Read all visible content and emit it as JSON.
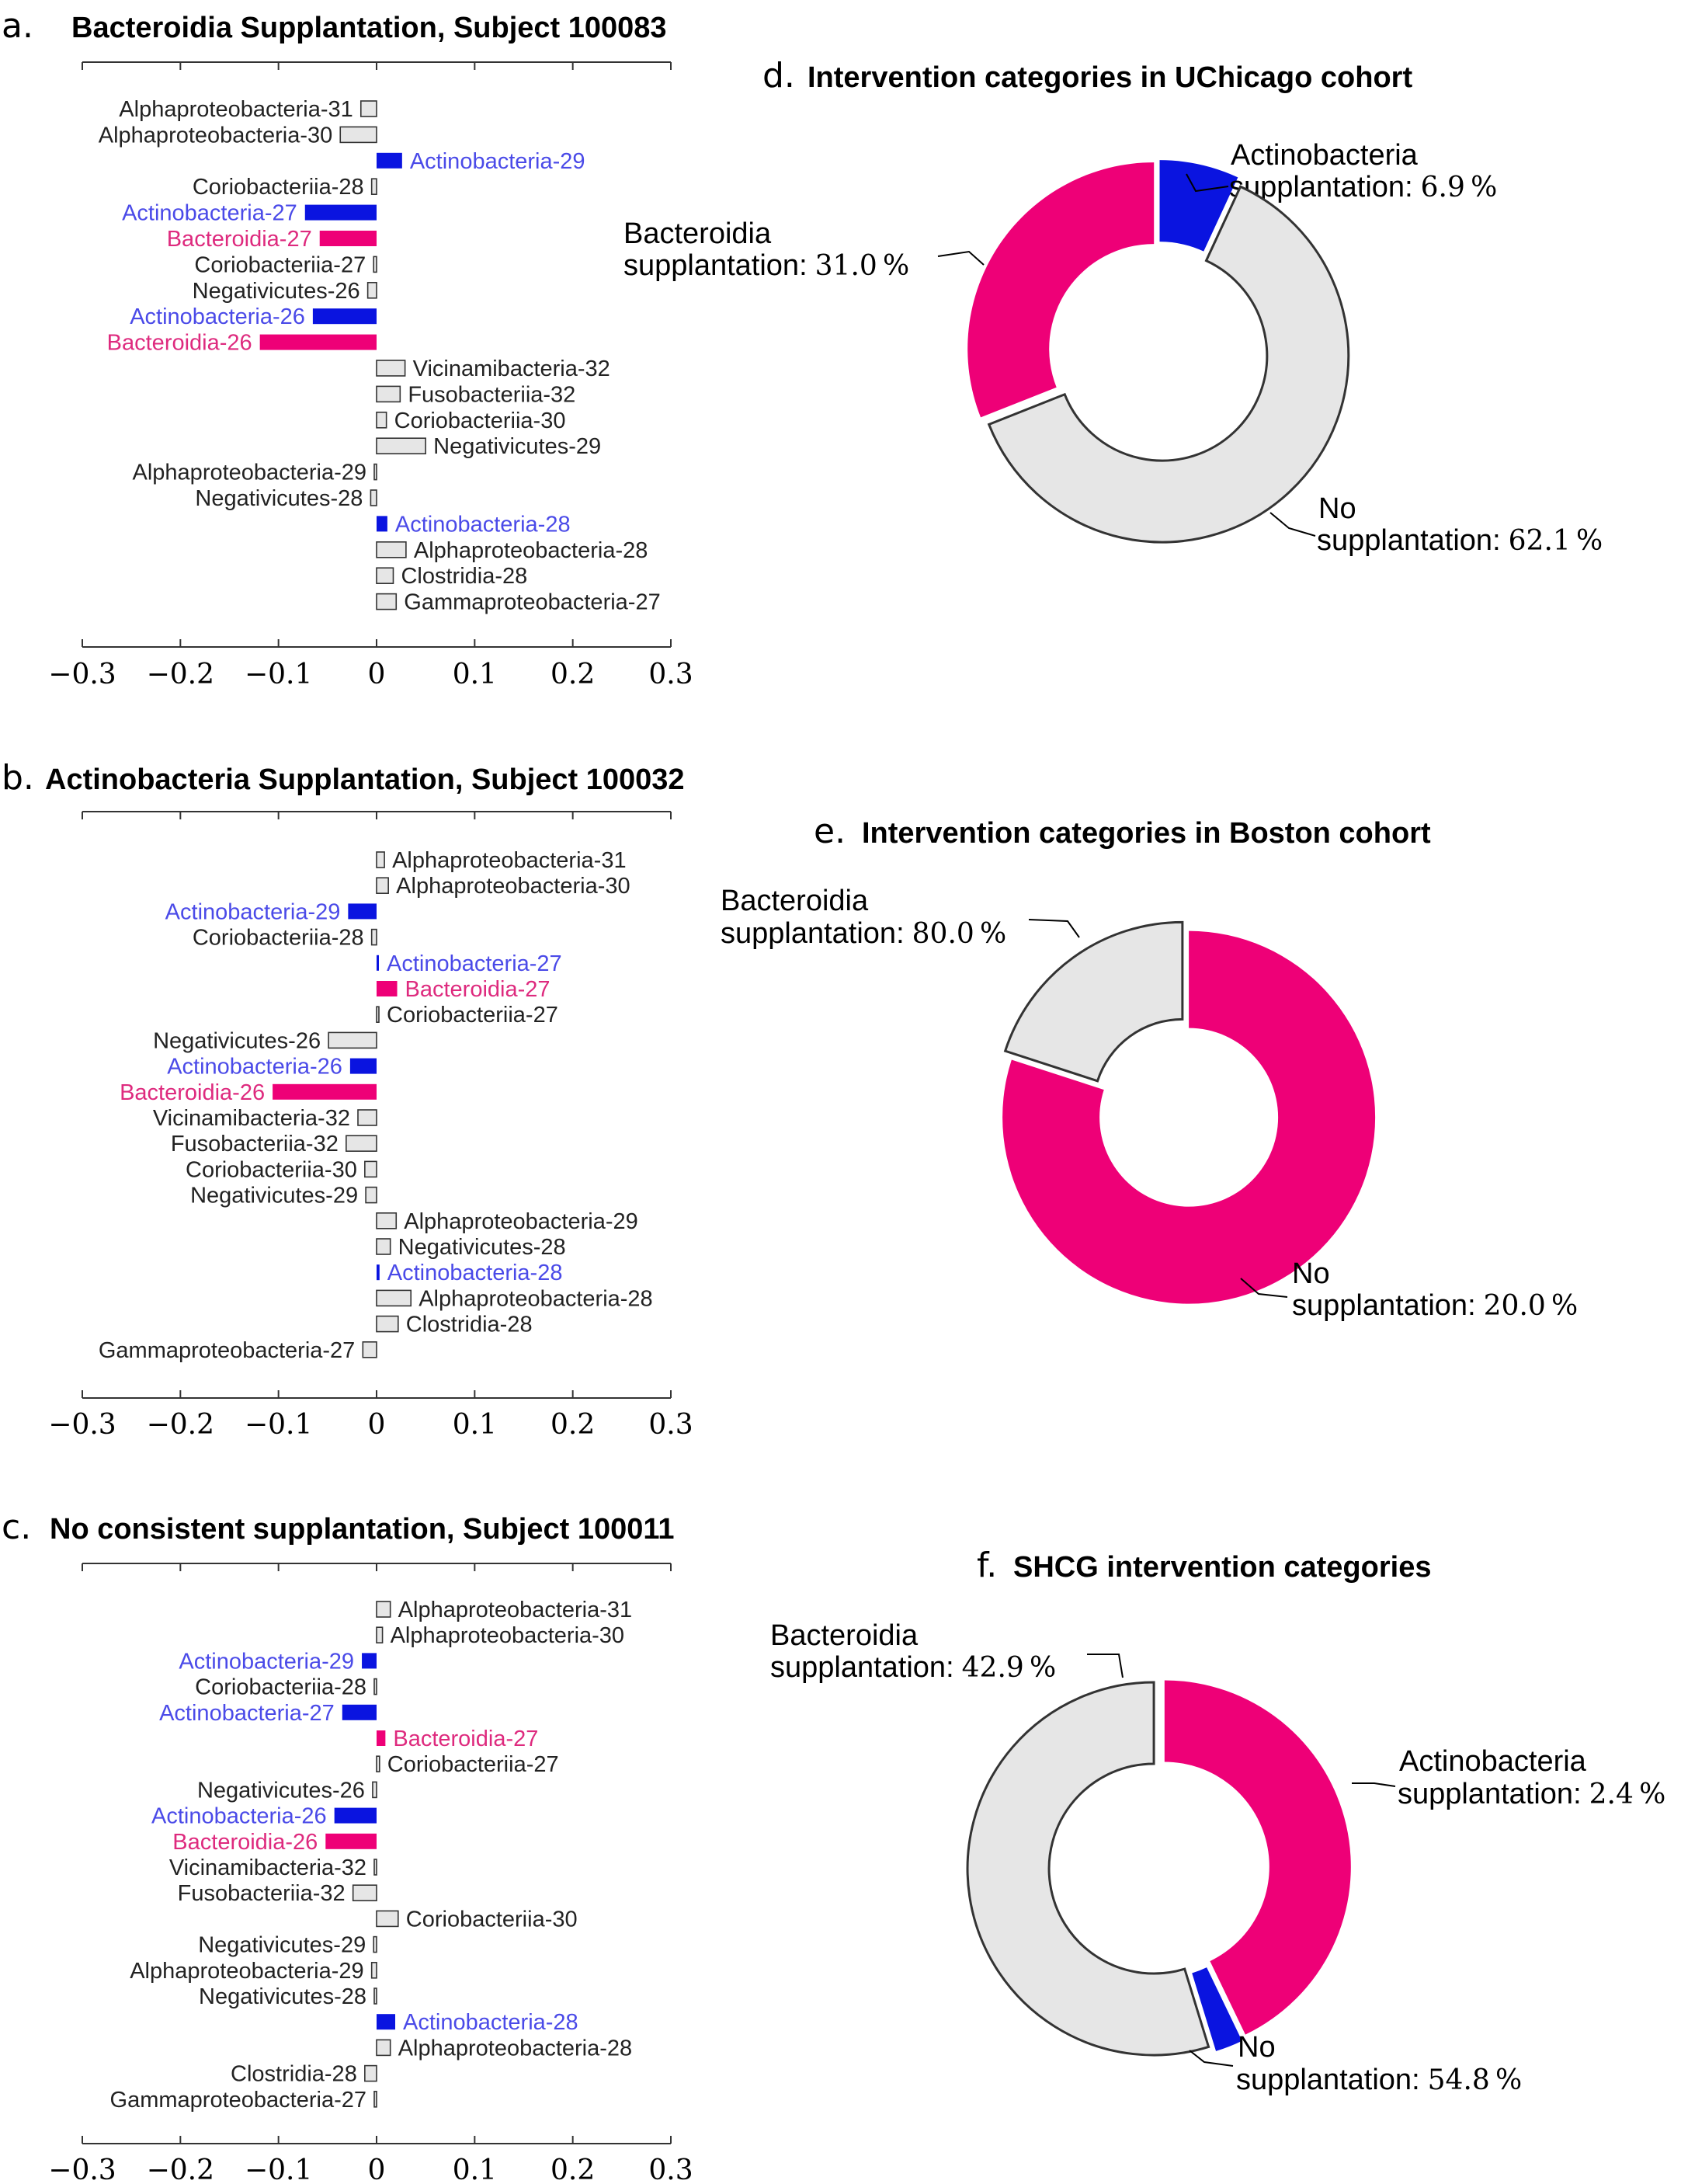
{
  "colors": {
    "bacteroidia": "#ee0077",
    "bacteroidia_text": "#de2a7e",
    "actinobacteria": "#0a14e0",
    "actinobacteria_text": "#4a4ae8",
    "other": "#e6e6e6",
    "other_text": "#222222",
    "stroke": "#333333"
  },
  "chart_data": [
    {
      "id": "a",
      "type": "bar",
      "orientation": "horizontal",
      "letter": "a.",
      "title": "Bacteroidia Supplantation, Subject 100083",
      "xlim": [
        -0.3,
        0.3
      ],
      "xticks": [
        -0.3,
        -0.2,
        -0.1,
        0,
        0.1,
        0.2,
        0.3
      ],
      "xtick_labels": [
        "−0.3",
        "−0.2",
        "−0.1",
        "0",
        "0.1",
        "0.2",
        "0.3"
      ],
      "bars": [
        {
          "label": "Alphaproteobacteria-31",
          "value": -0.016,
          "group": "other"
        },
        {
          "label": "Alphaproteobacteria-30",
          "value": -0.037,
          "group": "other"
        },
        {
          "label": "Actinobacteria-29",
          "value": 0.026,
          "group": "actinobacteria"
        },
        {
          "label": "Coriobacteriia-28",
          "value": -0.005,
          "group": "other"
        },
        {
          "label": "Actinobacteria-27",
          "value": -0.073,
          "group": "actinobacteria"
        },
        {
          "label": "Bacteroidia-27",
          "value": -0.058,
          "group": "bacteroidia"
        },
        {
          "label": "Coriobacteriia-27",
          "value": -0.003,
          "group": "other"
        },
        {
          "label": "Negativicutes-26",
          "value": -0.009,
          "group": "other"
        },
        {
          "label": "Actinobacteria-26",
          "value": -0.065,
          "group": "actinobacteria"
        },
        {
          "label": "Bacteroidia-26",
          "value": -0.119,
          "group": "bacteroidia"
        },
        {
          "label": "Vicinamibacteria-32",
          "value": 0.029,
          "group": "other"
        },
        {
          "label": "Fusobacteriia-32",
          "value": 0.024,
          "group": "other"
        },
        {
          "label": "Coriobacteriia-30",
          "value": 0.01,
          "group": "other"
        },
        {
          "label": "Negativicutes-29",
          "value": 0.05,
          "group": "other"
        },
        {
          "label": "Alphaproteobacteria-29",
          "value": -0.002,
          "group": "other"
        },
        {
          "label": "Negativicutes-28",
          "value": -0.006,
          "group": "other"
        },
        {
          "label": "Actinobacteria-28",
          "value": 0.011,
          "group": "actinobacteria"
        },
        {
          "label": "Alphaproteobacteria-28",
          "value": 0.03,
          "group": "other"
        },
        {
          "label": "Clostridia-28",
          "value": 0.017,
          "group": "other"
        },
        {
          "label": "Gammaproteobacteria-27",
          "value": 0.02,
          "group": "other"
        }
      ]
    },
    {
      "id": "b",
      "type": "bar",
      "orientation": "horizontal",
      "letter": "b.",
      "title": "Actinobacteria Supplantation, Subject 100032",
      "xlim": [
        -0.3,
        0.3
      ],
      "xticks": [
        -0.3,
        -0.2,
        -0.1,
        0,
        0.1,
        0.2,
        0.3
      ],
      "xtick_labels": [
        "−0.3",
        "−0.2",
        "−0.1",
        "0",
        "0.1",
        "0.2",
        "0.3"
      ],
      "bars": [
        {
          "label": "Alphaproteobacteria-31",
          "value": 0.008,
          "group": "other"
        },
        {
          "label": "Alphaproteobacteria-30",
          "value": 0.012,
          "group": "other"
        },
        {
          "label": "Actinobacteria-29",
          "value": -0.029,
          "group": "actinobacteria"
        },
        {
          "label": "Coriobacteriia-28",
          "value": -0.005,
          "group": "other"
        },
        {
          "label": "Actinobacteria-27",
          "value": 0.002,
          "group": "actinobacteria"
        },
        {
          "label": "Bacteroidia-27",
          "value": 0.021,
          "group": "bacteroidia"
        },
        {
          "label": "Coriobacteriia-27",
          "value": 0.002,
          "group": "other"
        },
        {
          "label": "Negativicutes-26",
          "value": -0.049,
          "group": "other"
        },
        {
          "label": "Actinobacteria-26",
          "value": -0.027,
          "group": "actinobacteria"
        },
        {
          "label": "Bacteroidia-26",
          "value": -0.106,
          "group": "bacteroidia"
        },
        {
          "label": "Vicinamibacteria-32",
          "value": -0.019,
          "group": "other"
        },
        {
          "label": "Fusobacteriia-32",
          "value": -0.031,
          "group": "other"
        },
        {
          "label": "Coriobacteriia-30",
          "value": -0.012,
          "group": "other"
        },
        {
          "label": "Negativicutes-29",
          "value": -0.011,
          "group": "other"
        },
        {
          "label": "Alphaproteobacteria-29",
          "value": 0.02,
          "group": "other"
        },
        {
          "label": "Negativicutes-28",
          "value": 0.014,
          "group": "other"
        },
        {
          "label": "Actinobacteria-28",
          "value": 0.003,
          "group": "actinobacteria"
        },
        {
          "label": "Alphaproteobacteria-28",
          "value": 0.035,
          "group": "other"
        },
        {
          "label": "Clostridia-28",
          "value": 0.022,
          "group": "other"
        },
        {
          "label": "Gammaproteobacteria-27",
          "value": -0.014,
          "group": "other"
        }
      ]
    },
    {
      "id": "c",
      "type": "bar",
      "orientation": "horizontal",
      "letter": "c.",
      "title": "No consistent supplantation, Subject 100011",
      "xlim": [
        -0.3,
        0.3
      ],
      "xticks": [
        -0.3,
        -0.2,
        -0.1,
        0,
        0.1,
        0.2,
        0.3
      ],
      "xtick_labels": [
        "−0.3",
        "−0.2",
        "−0.1",
        "0",
        "0.1",
        "0.2",
        "0.3"
      ],
      "bars": [
        {
          "label": "Alphaproteobacteria-31",
          "value": 0.014,
          "group": "other"
        },
        {
          "label": "Alphaproteobacteria-30",
          "value": 0.006,
          "group": "other"
        },
        {
          "label": "Actinobacteria-29",
          "value": -0.015,
          "group": "actinobacteria"
        },
        {
          "label": "Coriobacteriia-28",
          "value": -0.001,
          "group": "other"
        },
        {
          "label": "Actinobacteria-27",
          "value": -0.035,
          "group": "actinobacteria"
        },
        {
          "label": "Bacteroidia-27",
          "value": 0.009,
          "group": "bacteroidia"
        },
        {
          "label": "Coriobacteriia-27",
          "value": 0.003,
          "group": "other"
        },
        {
          "label": "Negativicutes-26",
          "value": -0.004,
          "group": "other"
        },
        {
          "label": "Actinobacteria-26",
          "value": -0.043,
          "group": "actinobacteria"
        },
        {
          "label": "Bacteroidia-26",
          "value": -0.052,
          "group": "bacteroidia"
        },
        {
          "label": "Vicinamibacteria-32",
          "value": -0.002,
          "group": "other"
        },
        {
          "label": "Fusobacteriia-32",
          "value": -0.024,
          "group": "other"
        },
        {
          "label": "Coriobacteriia-30",
          "value": 0.022,
          "group": "other"
        },
        {
          "label": "Negativicutes-29",
          "value": -0.003,
          "group": "other"
        },
        {
          "label": "Alphaproteobacteria-29",
          "value": -0.005,
          "group": "other"
        },
        {
          "label": "Negativicutes-28",
          "value": -0.002,
          "group": "other"
        },
        {
          "label": "Actinobacteria-28",
          "value": 0.019,
          "group": "actinobacteria"
        },
        {
          "label": "Alphaproteobacteria-28",
          "value": 0.014,
          "group": "other"
        },
        {
          "label": "Clostridia-28",
          "value": -0.012,
          "group": "other"
        },
        {
          "label": "Gammaproteobacteria-27",
          "value": -0.002,
          "group": "other"
        }
      ]
    },
    {
      "id": "d",
      "type": "pie",
      "donut": true,
      "letter": "d.",
      "title": "Intervention categories in UChicago cohort",
      "slices": [
        {
          "name": "Actinobacteria supplantation",
          "label_lines": [
            "Actinobacteria",
            "supplantation:"
          ],
          "value": 6.9,
          "pct_text": "6.9 %",
          "group": "actinobacteria"
        },
        {
          "name": "No supplantation",
          "label_lines": [
            "No",
            "supplantation:"
          ],
          "value": 62.1,
          "pct_text": "62.1 %",
          "group": "other"
        },
        {
          "name": "Bacteroidia supplantation",
          "label_lines": [
            "Bacteroidia",
            "supplantation:"
          ],
          "value": 31.0,
          "pct_text": "31.0 %",
          "group": "bacteroidia"
        }
      ]
    },
    {
      "id": "e",
      "type": "pie",
      "donut": true,
      "letter": "e.",
      "title": "Intervention categories in Boston cohort",
      "slices": [
        {
          "name": "Bacteroidia supplantation",
          "label_lines": [
            "Bacteroidia",
            "supplantation:"
          ],
          "value": 80.0,
          "pct_text": "80.0 %",
          "group": "bacteroidia"
        },
        {
          "name": "No supplantation",
          "label_lines": [
            "No",
            "supplantation:"
          ],
          "value": 20.0,
          "pct_text": "20.0 %",
          "group": "other"
        }
      ]
    },
    {
      "id": "f",
      "type": "pie",
      "donut": true,
      "letter": "f.",
      "title": "SHCG intervention categories",
      "slices": [
        {
          "name": "Bacteroidia supplantation",
          "label_lines": [
            "Bacteroidia",
            "supplantation:"
          ],
          "value": 42.9,
          "pct_text": "42.9 %",
          "group": "bacteroidia"
        },
        {
          "name": "Actinobacteria supplantation",
          "label_lines": [
            "Actinobacteria",
            "supplantation:"
          ],
          "value": 2.4,
          "pct_text": "2.4 %",
          "group": "actinobacteria"
        },
        {
          "name": "No supplantation",
          "label_lines": [
            "No",
            "supplantation:"
          ],
          "value": 54.8,
          "pct_text": "54.8 %",
          "group": "other"
        }
      ]
    }
  ]
}
